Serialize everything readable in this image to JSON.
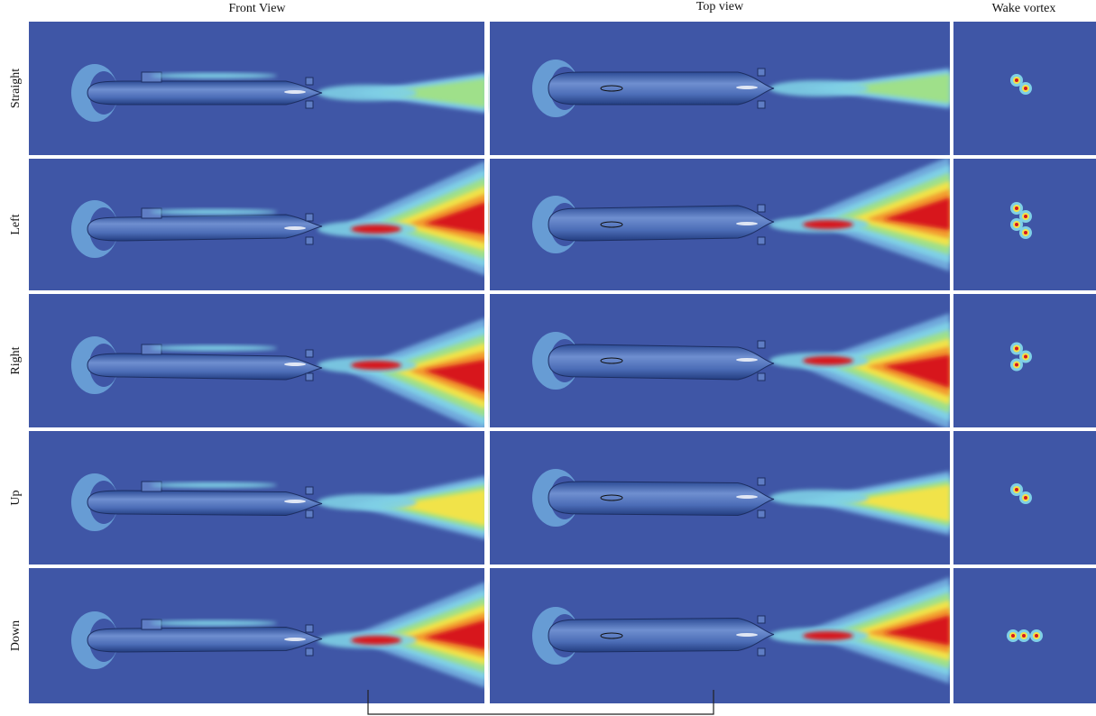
{
  "columns": [
    "Front View",
    "Top view",
    "Wake vortex"
  ],
  "rows": [
    "Straight",
    "Left",
    "Right",
    "Up",
    "Down"
  ]
}
